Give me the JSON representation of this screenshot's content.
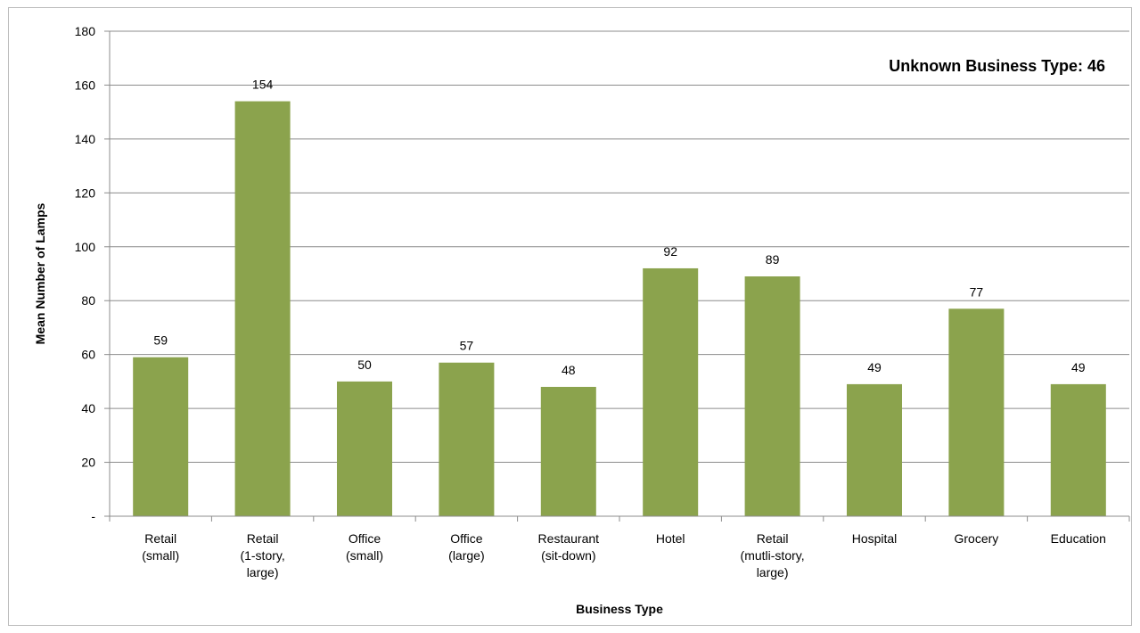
{
  "chart_data": {
    "type": "bar",
    "title": "",
    "xlabel": "Business Type",
    "ylabel": "Mean Number of Lamps",
    "ylim": [
      0,
      180
    ],
    "yticks": [
      0,
      20,
      40,
      60,
      80,
      100,
      120,
      140,
      160,
      180
    ],
    "ytick_labels": [
      "-",
      "20",
      "40",
      "60",
      "80",
      "100",
      "120",
      "140",
      "160",
      "180"
    ],
    "grid": true,
    "categories": [
      [
        "Retail",
        "(small)"
      ],
      [
        "Retail",
        "(1-story,",
        "large)"
      ],
      [
        "Office",
        "(small)"
      ],
      [
        "Office",
        "(large)"
      ],
      [
        "Restaurant",
        "(sit-down)"
      ],
      [
        "Hotel"
      ],
      [
        "Retail",
        "(mutli-story,",
        "large)"
      ],
      [
        "Hospital"
      ],
      [
        "Grocery"
      ],
      [
        "Education"
      ]
    ],
    "values": [
      59,
      154,
      50,
      57,
      48,
      92,
      89,
      49,
      77,
      49
    ],
    "data_labels": [
      "59",
      "154",
      "50",
      "57",
      "48",
      "92",
      "89",
      "49",
      "77",
      "49"
    ],
    "bar_color": "#8ba34d",
    "annotation": "Unknown Business Type: 46"
  }
}
